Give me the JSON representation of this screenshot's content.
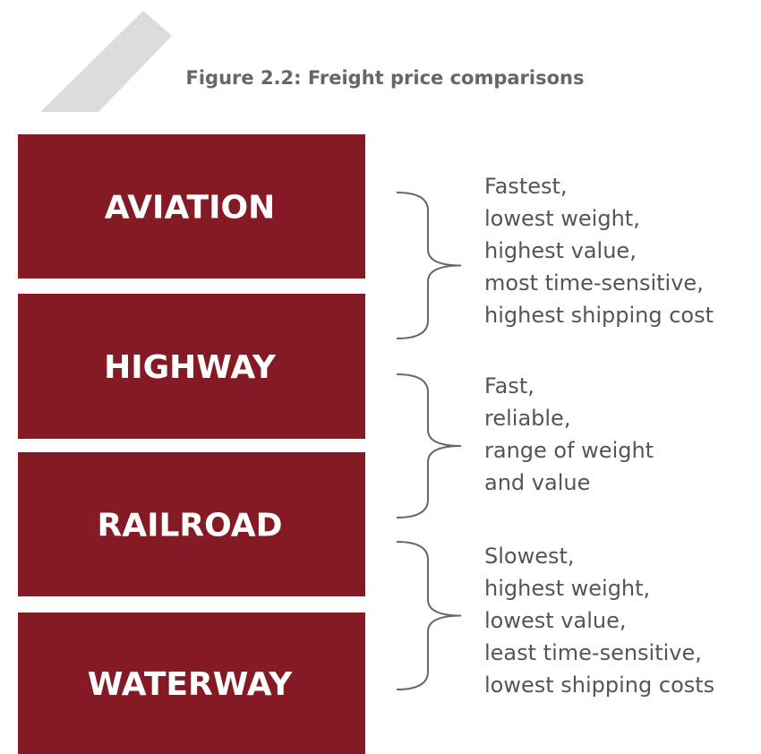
{
  "title": "Figure 2.2: Freight price comparisons",
  "nodes": [
    {
      "label": "AVIATION"
    },
    {
      "label": "HIGHWAY"
    },
    {
      "label": "RAILROAD"
    },
    {
      "label": "WATERWAY"
    }
  ],
  "groups": [
    {
      "lines": [
        "Fastest,",
        "lowest weight,",
        "highest value,",
        "most time-sensitive,",
        "highest shipping cost"
      ]
    },
    {
      "lines": [
        "Fast,",
        "reliable,",
        "range of weight",
        "and value"
      ]
    },
    {
      "lines": [
        "Slowest,",
        "highest weight,",
        "lowest value,",
        "least time-sensitive,",
        "lowest shipping costs"
      ]
    }
  ]
}
